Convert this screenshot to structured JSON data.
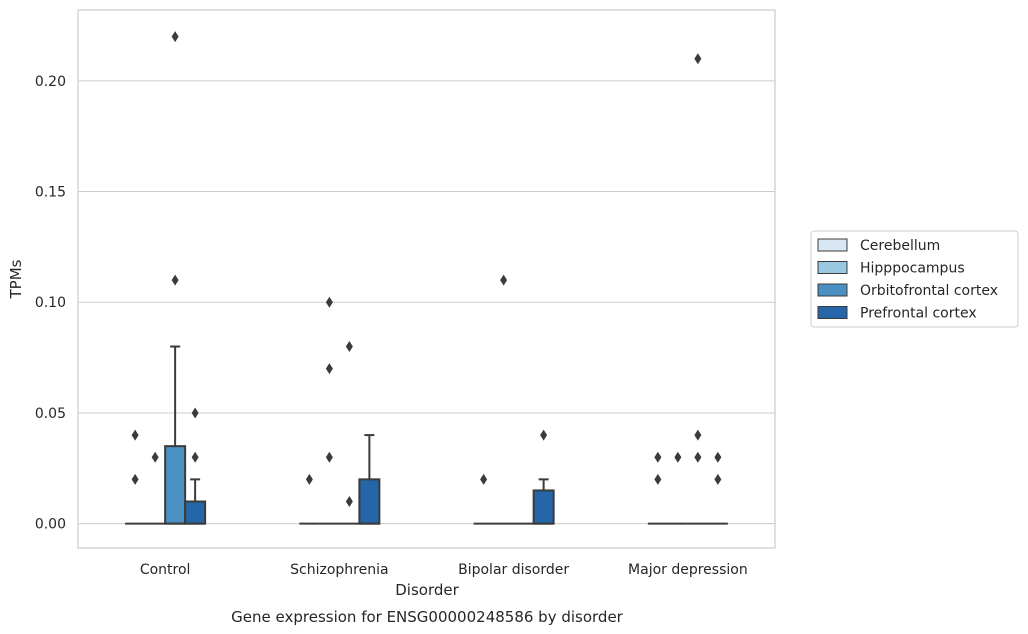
{
  "chart_data": {
    "type": "box",
    "xlabel": "Disorder",
    "ylabel": "TPMs",
    "caption": "Gene expression for ENSG00000248586 by disorder",
    "ylim": [
      -0.011,
      0.232
    ],
    "yticks": [
      "0.00",
      "0.05",
      "0.10",
      "0.15",
      "0.20"
    ],
    "categories": [
      "Control",
      "Schizophrenia",
      "Bipolar disorder",
      "Major depression"
    ],
    "grid": "horizontal",
    "legend_position": "right",
    "series": [
      {
        "name": "Cerebellum",
        "color": "#d8e7f4",
        "boxes": [
          {
            "q1": 0,
            "median": 0,
            "q3": 0,
            "whisker_low": 0,
            "whisker_high": 0,
            "outliers": [
              0.02,
              0.04
            ]
          },
          {
            "q1": 0,
            "median": 0,
            "q3": 0,
            "whisker_low": 0,
            "whisker_high": 0,
            "outliers": [
              0.02
            ]
          },
          {
            "q1": 0,
            "median": 0,
            "q3": 0,
            "whisker_low": 0,
            "whisker_high": 0,
            "outliers": [
              0.02
            ]
          },
          {
            "q1": 0,
            "median": 0,
            "q3": 0,
            "whisker_low": 0,
            "whisker_high": 0,
            "outliers": [
              0.02,
              0.03
            ]
          }
        ]
      },
      {
        "name": "Hipppocampus",
        "color": "#9ac8e0",
        "boxes": [
          {
            "q1": 0,
            "median": 0,
            "q3": 0,
            "whisker_low": 0,
            "whisker_high": 0,
            "outliers": [
              0.03
            ]
          },
          {
            "q1": 0,
            "median": 0,
            "q3": 0,
            "whisker_low": 0,
            "whisker_high": 0,
            "outliers": [
              0.03,
              0.07,
              0.1
            ]
          },
          {
            "q1": 0,
            "median": 0,
            "q3": 0,
            "whisker_low": 0,
            "whisker_high": 0,
            "outliers": [
              0.11
            ]
          },
          {
            "q1": 0,
            "median": 0,
            "q3": 0,
            "whisker_low": 0,
            "whisker_high": 0,
            "outliers": [
              0.03
            ]
          }
        ]
      },
      {
        "name": "Orbitofrontal cortex",
        "color": "#4a90c2",
        "boxes": [
          {
            "q1": 0,
            "median": 0,
            "q3": 0.035,
            "whisker_low": 0,
            "whisker_high": 0.08,
            "outliers": [
              0.11,
              0.22
            ]
          },
          {
            "q1": 0,
            "median": 0,
            "q3": 0,
            "whisker_low": 0,
            "whisker_high": 0,
            "outliers": [
              0.01,
              0.08
            ]
          },
          {
            "q1": 0,
            "median": 0,
            "q3": 0,
            "whisker_low": 0,
            "whisker_high": 0,
            "outliers": []
          },
          {
            "q1": 0,
            "median": 0,
            "q3": 0,
            "whisker_low": 0,
            "whisker_high": 0,
            "outliers": [
              0.03,
              0.04,
              0.21
            ]
          }
        ]
      },
      {
        "name": "Prefrontal cortex",
        "color": "#2466a8",
        "boxes": [
          {
            "q1": 0,
            "median": 0,
            "q3": 0.01,
            "whisker_low": 0,
            "whisker_high": 0.02,
            "outliers": [
              0.03,
              0.05
            ]
          },
          {
            "q1": 0,
            "median": 0,
            "q3": 0.02,
            "whisker_low": 0,
            "whisker_high": 0.04,
            "outliers": []
          },
          {
            "q1": 0,
            "median": 0,
            "q3": 0.015,
            "whisker_low": 0,
            "whisker_high": 0.02,
            "outliers": [
              0.04
            ]
          },
          {
            "q1": 0,
            "median": 0,
            "q3": 0,
            "whisker_low": 0,
            "whisker_high": 0,
            "outliers": [
              0.02,
              0.03
            ]
          }
        ]
      }
    ]
  }
}
